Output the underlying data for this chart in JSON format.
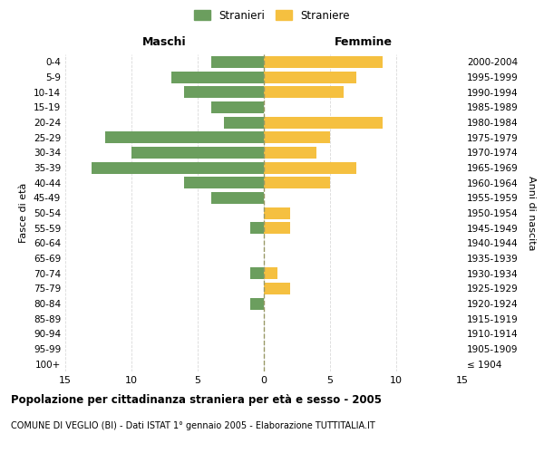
{
  "age_groups": [
    "100+",
    "95-99",
    "90-94",
    "85-89",
    "80-84",
    "75-79",
    "70-74",
    "65-69",
    "60-64",
    "55-59",
    "50-54",
    "45-49",
    "40-44",
    "35-39",
    "30-34",
    "25-29",
    "20-24",
    "15-19",
    "10-14",
    "5-9",
    "0-4"
  ],
  "birth_years": [
    "≤ 1904",
    "1905-1909",
    "1910-1914",
    "1915-1919",
    "1920-1924",
    "1925-1929",
    "1930-1934",
    "1935-1939",
    "1940-1944",
    "1945-1949",
    "1950-1954",
    "1955-1959",
    "1960-1964",
    "1965-1969",
    "1970-1974",
    "1975-1979",
    "1980-1984",
    "1985-1989",
    "1990-1994",
    "1995-1999",
    "2000-2004"
  ],
  "maschi": [
    0,
    0,
    0,
    0,
    1,
    0,
    1,
    0,
    0,
    1,
    0,
    4,
    6,
    13,
    10,
    12,
    3,
    4,
    6,
    7,
    4
  ],
  "femmine": [
    0,
    0,
    0,
    0,
    0,
    2,
    1,
    0,
    0,
    2,
    2,
    0,
    5,
    7,
    4,
    5,
    9,
    0,
    6,
    7,
    9
  ],
  "maschi_color": "#6b9e5e",
  "femmine_color": "#f5c040",
  "center_line_color": "#999966",
  "grid_color": "#d9d9d9",
  "bg_color": "#ffffff",
  "title": "Popolazione per cittadinanza straniera per età e sesso - 2005",
  "subtitle": "COMUNE DI VEGLIO (BI) - Dati ISTAT 1° gennaio 2005 - Elaborazione TUTTITALIA.IT",
  "xlabel_left": "Maschi",
  "xlabel_right": "Femmine",
  "ylabel_left": "Fasce di età",
  "ylabel_right": "Anni di nascita",
  "legend_maschi": "Stranieri",
  "legend_femmine": "Straniere",
  "xlim": 15
}
